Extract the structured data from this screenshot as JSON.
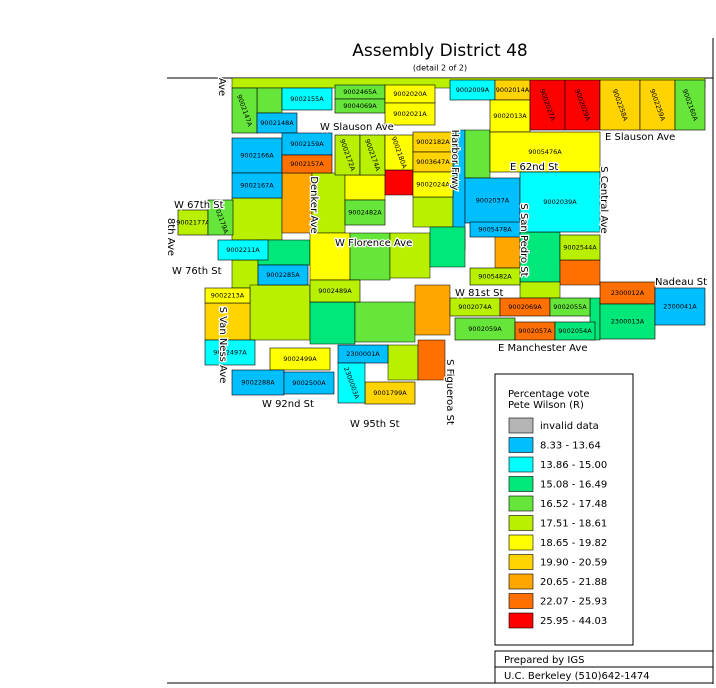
{
  "title": "Assembly District 48",
  "subtitle": "(detail 2 of 2)",
  "legend": {
    "title": [
      "Percentage vote",
      "Pete Wilson (R)"
    ],
    "items": [
      {
        "label": "invalid data",
        "color": "#b4b4b4"
      },
      {
        "label": "8.33 - 13.64",
        "color": "#00bfff"
      },
      {
        "label": "13.86 - 15.00",
        "color": "#00ffff"
      },
      {
        "label": "15.08 - 16.49",
        "color": "#00e87a"
      },
      {
        "label": "16.52 - 17.48",
        "color": "#66e63a"
      },
      {
        "label": "17.51 - 18.61",
        "color": "#b8f000"
      },
      {
        "label": "18.65 - 19.82",
        "color": "#ffff00"
      },
      {
        "label": "19.90 - 20.59",
        "color": "#ffd400"
      },
      {
        "label": "20.65 - 21.88",
        "color": "#ffa600"
      },
      {
        "label": "22.07 - 25.93",
        "color": "#ff7000"
      },
      {
        "label": "25.95 - 44.03",
        "color": "#ff0000"
      }
    ]
  },
  "footer": [
    "Prepared by IGS",
    "U.C. Berkeley (510)642-1474"
  ],
  "streets": [
    "Ave",
    "W Slauson Ave",
    "E Slauson Ave",
    "E 62nd St",
    "W 67th St",
    "8th Ave",
    "W 76th St",
    "W Florence Ave",
    "W 81st St",
    "Nadeau St",
    "E Manchester Ave",
    "S Van Ness Ave",
    "W 92nd St",
    "W 95th St",
    "S Figueroa St",
    "S San Pedro St",
    "S Central Ave",
    "Denker Ave",
    "Harbor Frwy"
  ],
  "precincts": [
    {
      "id": "9002155A",
      "bin": 2
    },
    {
      "id": "9002465A",
      "bin": 4
    },
    {
      "id": "9004069A",
      "bin": 4
    },
    {
      "id": "9002020A",
      "bin": 6
    },
    {
      "id": "9002021A",
      "bin": 6
    },
    {
      "id": "9002147A",
      "bin": 4
    },
    {
      "id": "9002148A",
      "bin": 1
    },
    {
      "id": "9002009A",
      "bin": 2
    },
    {
      "id": "9002014A",
      "bin": 7
    },
    {
      "id": "9002013A",
      "bin": 6
    },
    {
      "id": "9002027A",
      "bin": 10
    },
    {
      "id": "9002029A",
      "bin": 10
    },
    {
      "id": "9002258A",
      "bin": 7
    },
    {
      "id": "9002259A",
      "bin": 7
    },
    {
      "id": "9002160A",
      "bin": 4
    },
    {
      "id": "9002166A",
      "bin": 1
    },
    {
      "id": "9002159A",
      "bin": 1
    },
    {
      "id": "9002157A",
      "bin": 9
    },
    {
      "id": "9002172A",
      "bin": 5
    },
    {
      "id": "9002174A",
      "bin": 5
    },
    {
      "id": "9002180A",
      "bin": 6
    },
    {
      "id": "9002182A",
      "bin": 7
    },
    {
      "id": "9003647A",
      "bin": 7
    },
    {
      "id": "9005476A",
      "bin": 6
    },
    {
      "id": "9002167A",
      "bin": 1
    },
    {
      "id": "9002024A",
      "bin": 6
    },
    {
      "id": "9002037A",
      "bin": 1
    },
    {
      "id": "9002039A",
      "bin": 2
    },
    {
      "id": "9002177A",
      "bin": 5
    },
    {
      "id": "9002179A",
      "bin": 4
    },
    {
      "id": "9002482A",
      "bin": 4
    },
    {
      "id": "9002211A",
      "bin": 2
    },
    {
      "id": "9002285A",
      "bin": 1
    },
    {
      "id": "9002489A",
      "bin": 5
    },
    {
      "id": "9005482A",
      "bin": 5
    },
    {
      "id": "9005478A",
      "bin": 1
    },
    {
      "id": "9002213A",
      "bin": 6
    },
    {
      "id": "9002074A",
      "bin": 5
    },
    {
      "id": "9002069A",
      "bin": 9
    },
    {
      "id": "9002055A",
      "bin": 4
    },
    {
      "id": "9002059A",
      "bin": 4
    },
    {
      "id": "9002057A",
      "bin": 9
    },
    {
      "id": "9002054A",
      "bin": 3
    },
    {
      "id": "2300012A",
      "bin": 9
    },
    {
      "id": "2300013A",
      "bin": 3
    },
    {
      "id": "2300041A",
      "bin": 1
    },
    {
      "id": "9002499A",
      "bin": 6
    },
    {
      "id": "2300001A",
      "bin": 1
    },
    {
      "id": "9002288A",
      "bin": 1
    },
    {
      "id": "9002500A",
      "bin": 1
    },
    {
      "id": "9001799A",
      "bin": 7
    },
    {
      "id": "2300003A",
      "bin": 2
    },
    {
      "id": "9002497A",
      "bin": 2
    },
    {
      "id": "9002544A",
      "bin": 5
    }
  ]
}
